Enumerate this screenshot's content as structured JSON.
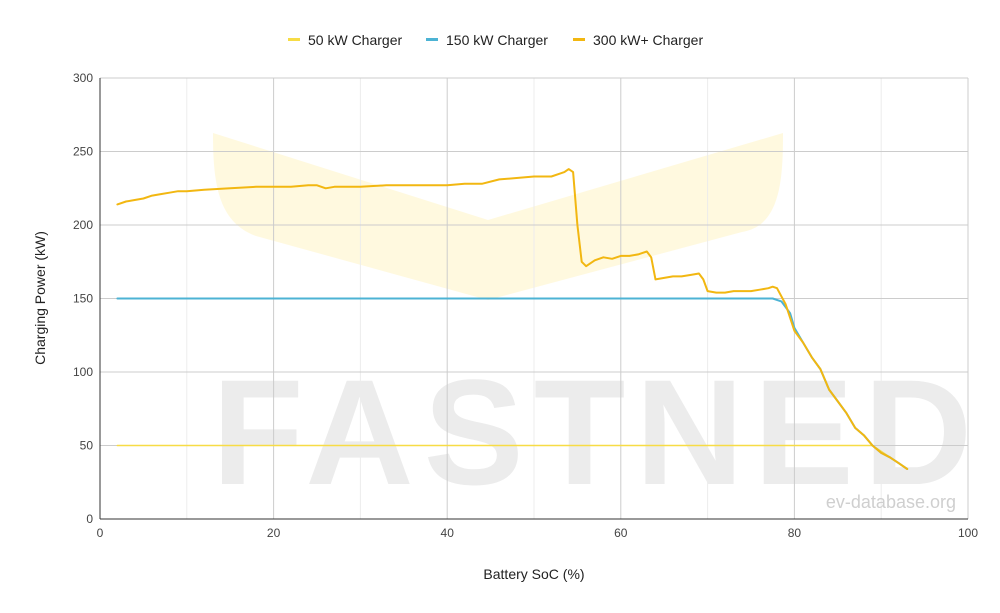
{
  "chart_data": {
    "type": "line",
    "xlabel": "Battery SoC (%)",
    "ylabel": "Charging Power (kW)",
    "xlim": [
      0,
      100
    ],
    "ylim": [
      0,
      300
    ],
    "x_ticks": [
      0,
      20,
      40,
      60,
      80,
      100
    ],
    "y_ticks": [
      0,
      50,
      100,
      150,
      200,
      250,
      300
    ],
    "grid": true,
    "legend_position": "top-center",
    "watermark": "FASTNED",
    "credit": "ev-database.org",
    "series": [
      {
        "name": "50 kW Charger",
        "color": "#f7dc45",
        "points": [
          [
            2,
            50
          ],
          [
            89,
            50
          ],
          [
            93,
            34
          ]
        ]
      },
      {
        "name": "150 kW Charger",
        "color": "#4cb3d4",
        "points": [
          [
            2,
            150
          ],
          [
            77.5,
            150
          ],
          [
            78.5,
            148
          ],
          [
            79.5,
            140
          ],
          [
            80,
            130
          ],
          [
            81,
            120
          ],
          [
            82,
            110
          ],
          [
            83,
            102
          ],
          [
            84,
            88
          ],
          [
            85,
            80
          ],
          [
            86,
            72
          ],
          [
            87,
            62
          ],
          [
            88,
            57
          ],
          [
            89,
            50
          ],
          [
            90,
            45
          ],
          [
            91,
            42
          ],
          [
            92,
            38
          ],
          [
            93,
            34
          ]
        ]
      },
      {
        "name": "300 kW+ Charger",
        "color": "#f2b711",
        "points": [
          [
            2,
            214
          ],
          [
            3,
            216
          ],
          [
            4,
            217
          ],
          [
            5,
            218
          ],
          [
            6,
            220
          ],
          [
            7,
            221
          ],
          [
            8,
            222
          ],
          [
            9,
            223
          ],
          [
            10,
            223
          ],
          [
            12,
            224
          ],
          [
            15,
            225
          ],
          [
            18,
            226
          ],
          [
            20,
            226
          ],
          [
            22,
            226
          ],
          [
            24,
            227
          ],
          [
            25,
            227
          ],
          [
            26,
            225
          ],
          [
            27,
            226
          ],
          [
            30,
            226
          ],
          [
            33,
            227
          ],
          [
            35,
            227
          ],
          [
            37,
            227
          ],
          [
            40,
            227
          ],
          [
            42,
            228
          ],
          [
            44,
            228
          ],
          [
            46,
            231
          ],
          [
            48,
            232
          ],
          [
            50,
            233
          ],
          [
            52,
            233
          ],
          [
            53,
            235
          ],
          [
            53.5,
            236
          ],
          [
            54,
            238
          ],
          [
            54.5,
            236
          ],
          [
            55,
            200
          ],
          [
            55.5,
            175
          ],
          [
            56,
            172
          ],
          [
            57,
            176
          ],
          [
            58,
            178
          ],
          [
            59,
            177
          ],
          [
            60,
            179
          ],
          [
            61,
            179
          ],
          [
            62,
            180
          ],
          [
            62.5,
            181
          ],
          [
            63,
            182
          ],
          [
            63.5,
            178
          ],
          [
            64,
            163
          ],
          [
            65,
            164
          ],
          [
            66,
            165
          ],
          [
            67,
            165
          ],
          [
            68,
            166
          ],
          [
            69,
            167
          ],
          [
            69.5,
            163
          ],
          [
            70,
            155
          ],
          [
            71,
            154
          ],
          [
            72,
            154
          ],
          [
            73,
            155
          ],
          [
            74,
            155
          ],
          [
            75,
            155
          ],
          [
            76,
            156
          ],
          [
            77,
            157
          ],
          [
            77.5,
            158
          ],
          [
            78,
            157
          ],
          [
            79,
            146
          ],
          [
            80,
            128
          ],
          [
            81,
            120
          ],
          [
            82,
            110
          ],
          [
            83,
            102
          ],
          [
            84,
            88
          ],
          [
            85,
            80
          ],
          [
            86,
            72
          ],
          [
            87,
            62
          ],
          [
            88,
            57
          ],
          [
            89,
            50
          ],
          [
            90,
            45
          ],
          [
            91,
            42
          ],
          [
            92,
            38
          ],
          [
            93,
            34
          ]
        ]
      }
    ]
  }
}
